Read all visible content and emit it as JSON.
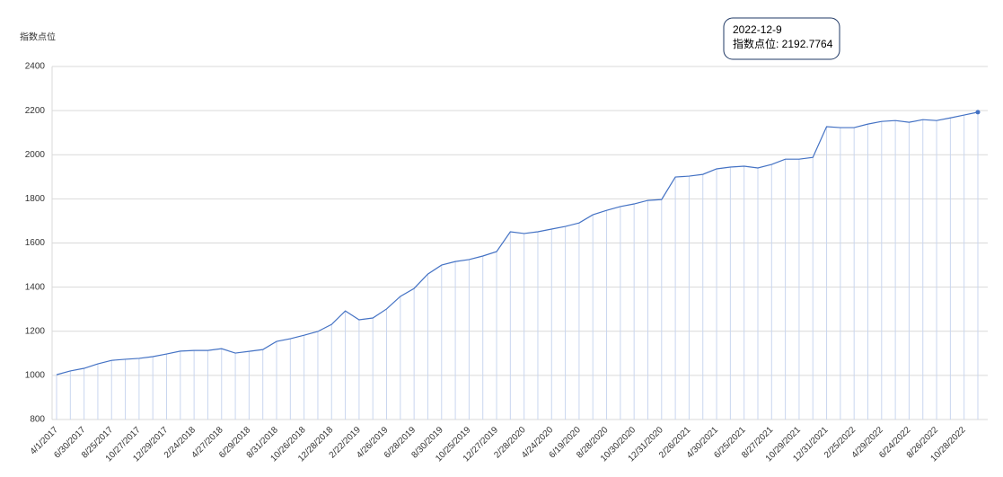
{
  "chart_data": {
    "type": "line",
    "y_axis_title": "指数点位",
    "tooltip": {
      "title": "2022-12-9",
      "text": "指数点位: 2192.7764"
    },
    "ylim": [
      800,
      2400
    ],
    "yticks": [
      800,
      1000,
      1200,
      1400,
      1600,
      1800,
      2000,
      2200,
      2400
    ],
    "grid": true,
    "categories": [
      "4/1/2017",
      null,
      "6/30/2017",
      null,
      "8/25/2017",
      null,
      "10/27/2017",
      null,
      "12/29/2017",
      null,
      "2/24/2018",
      null,
      "4/27/2018",
      null,
      "6/29/2018",
      null,
      "8/31/2018",
      null,
      "10/26/2018",
      null,
      "12/28/2018",
      null,
      "2/22/2019",
      null,
      "4/26/2019",
      null,
      "6/28/2019",
      null,
      "8/30/2019",
      null,
      "10/25/2019",
      null,
      "12/27/2019",
      null,
      "2/28/2020",
      null,
      "4/24/2020",
      null,
      "6/19/2020",
      null,
      "8/28/2020",
      null,
      "10/30/2020",
      null,
      "12/31/2020",
      null,
      "2/26/2021",
      null,
      "4/30/2021",
      null,
      "6/25/2021",
      null,
      "8/27/2021",
      null,
      "10/29/2021",
      null,
      "12/31/2021",
      null,
      "2/25/2022",
      null,
      "4/29/2022",
      null,
      "6/24/2022",
      null,
      "8/26/2022",
      null,
      "10/28/2022",
      null
    ],
    "series": [
      {
        "name": "指数点位",
        "color": "#4472c4",
        "values": [
          1003,
          1020,
          1032,
          1052,
          1068,
          1073,
          1077,
          1085,
          1097,
          1110,
          1113,
          1113,
          1121,
          1101,
          1109,
          1117,
          1154,
          1166,
          1182,
          1199,
          1231,
          1292,
          1252,
          1260,
          1301,
          1358,
          1394,
          1459,
          1500,
          1516,
          1525,
          1541,
          1561,
          1651,
          1643,
          1651,
          1663,
          1675,
          1691,
          1728,
          1748,
          1765,
          1777,
          1793,
          1797,
          1899,
          1903,
          1911,
          1936,
          1944,
          1948,
          1940,
          1956,
          1980,
          1980,
          1988,
          2127,
          2123,
          2123,
          2139,
          2151,
          2155,
          2147,
          2159,
          2155,
          2167,
          2180,
          2192.7764
        ]
      }
    ]
  }
}
